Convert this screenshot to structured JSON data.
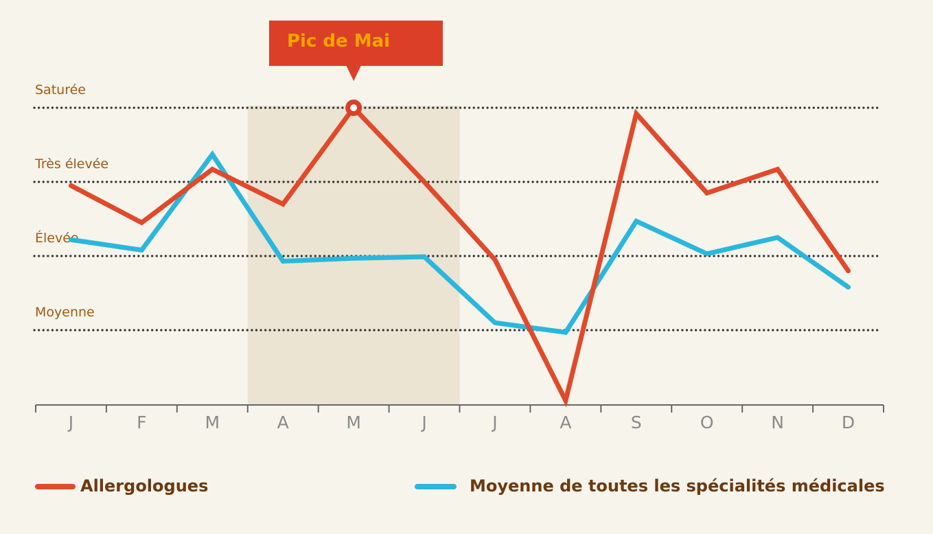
{
  "chart_data": {
    "type": "line",
    "categories": [
      "J",
      "F",
      "M",
      "A",
      "M",
      "J",
      "J",
      "A",
      "S",
      "O",
      "N",
      "D"
    ],
    "y_levels": [
      {
        "label": "Moyenne",
        "value": 1
      },
      {
        "label": "Élevée",
        "value": 2
      },
      {
        "label": "Très élevée",
        "value": 3
      },
      {
        "label": "Saturée",
        "value": 4
      }
    ],
    "ylim": [
      0,
      4
    ],
    "series": [
      {
        "name": "Allergologues",
        "color": "#e04a2a",
        "values": [
          2.95,
          2.45,
          3.17,
          2.7,
          4.0,
          3.0,
          1.95,
          0.05,
          3.92,
          2.85,
          3.17,
          1.8
        ]
      },
      {
        "name": "Moyenne de toutes les spécialités médicales",
        "color": "#2bb7dc",
        "values": [
          2.22,
          2.08,
          3.37,
          1.93,
          1.97,
          1.99,
          1.1,
          0.97,
          2.47,
          2.03,
          2.25,
          1.58
        ]
      }
    ],
    "highlight_range": {
      "from_index": 3,
      "to_index": 5
    },
    "annotation": {
      "text": "Pic de Mai",
      "series_index": 0,
      "point_index": 4
    },
    "colors": {
      "background": "#f7f4ec",
      "highlight": "#ebe4d3",
      "level_text": "#a05a10",
      "legend_text": "#6b3a10",
      "axis": "#666666",
      "month_text": "#8a8a8a",
      "callout_bg": "#dc3f28",
      "callout_text": "#f6a400"
    },
    "legend_position": "bottom",
    "grid": "dotted-levels"
  }
}
